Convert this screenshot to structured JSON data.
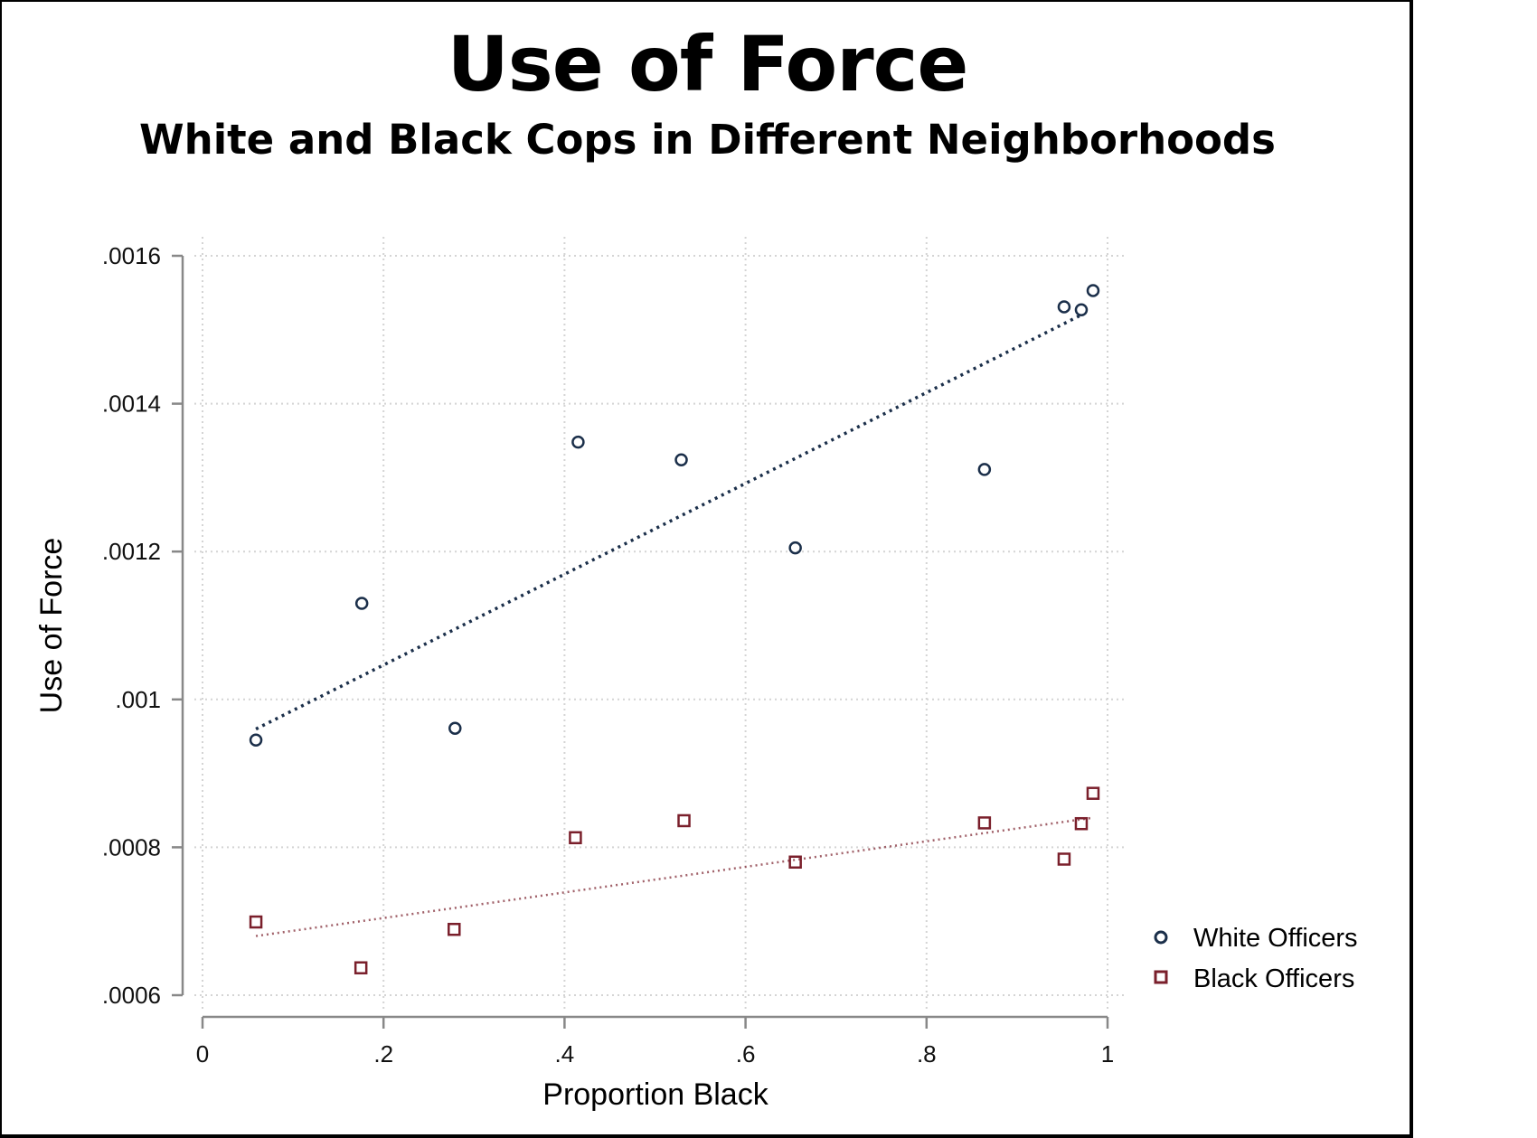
{
  "title": "Use of Force",
  "subtitle": "White and Black Cops in Different Neighborhoods",
  "chart_data": {
    "type": "scatter",
    "title": "Use of Force",
    "subtitle": "White and Black Cops in Different Neighborhoods",
    "xlabel": "Proportion Black",
    "ylabel": "Use of Force",
    "xlim": [
      0,
      1
    ],
    "ylim": [
      0.0006,
      0.0016
    ],
    "xticks": [
      0,
      0.2,
      0.4,
      0.6,
      0.8,
      1
    ],
    "xtick_labels": [
      "0",
      ".2",
      ".4",
      ".6",
      ".8",
      "1"
    ],
    "yticks": [
      0.0006,
      0.0008,
      0.001,
      0.0012,
      0.0014,
      0.0016
    ],
    "ytick_labels": [
      ".0006",
      ".0008",
      ".001",
      ".0012",
      ".0014",
      ".0016"
    ],
    "grid": true,
    "legend_position": "right",
    "series": [
      {
        "name": "White Officers",
        "marker": "circle",
        "color": "#1b2f4a",
        "x": [
          0.059,
          0.176,
          0.279,
          0.415,
          0.529,
          0.655,
          0.864,
          0.952,
          0.971,
          0.984
        ],
        "y": [
          0.000945,
          0.00113,
          0.000961,
          0.001348,
          0.001324,
          0.001205,
          0.001311,
          0.001531,
          0.001527,
          0.001553
        ],
        "fit": {
          "x": [
            0.059,
            0.971
          ],
          "y": [
            0.00096,
            0.00152
          ]
        }
      },
      {
        "name": "Black Officers",
        "marker": "square",
        "color": "#7a1f2b",
        "x": [
          0.059,
          0.175,
          0.278,
          0.412,
          0.532,
          0.655,
          0.864,
          0.952,
          0.971,
          0.984
        ],
        "y": [
          0.000699,
          0.000637,
          0.000689,
          0.000813,
          0.000836,
          0.00078,
          0.000833,
          0.000784,
          0.000832,
          0.000873
        ],
        "fit": {
          "x": [
            0.059,
            0.984
          ],
          "y": [
            0.00068,
            0.00084
          ]
        }
      }
    ]
  }
}
